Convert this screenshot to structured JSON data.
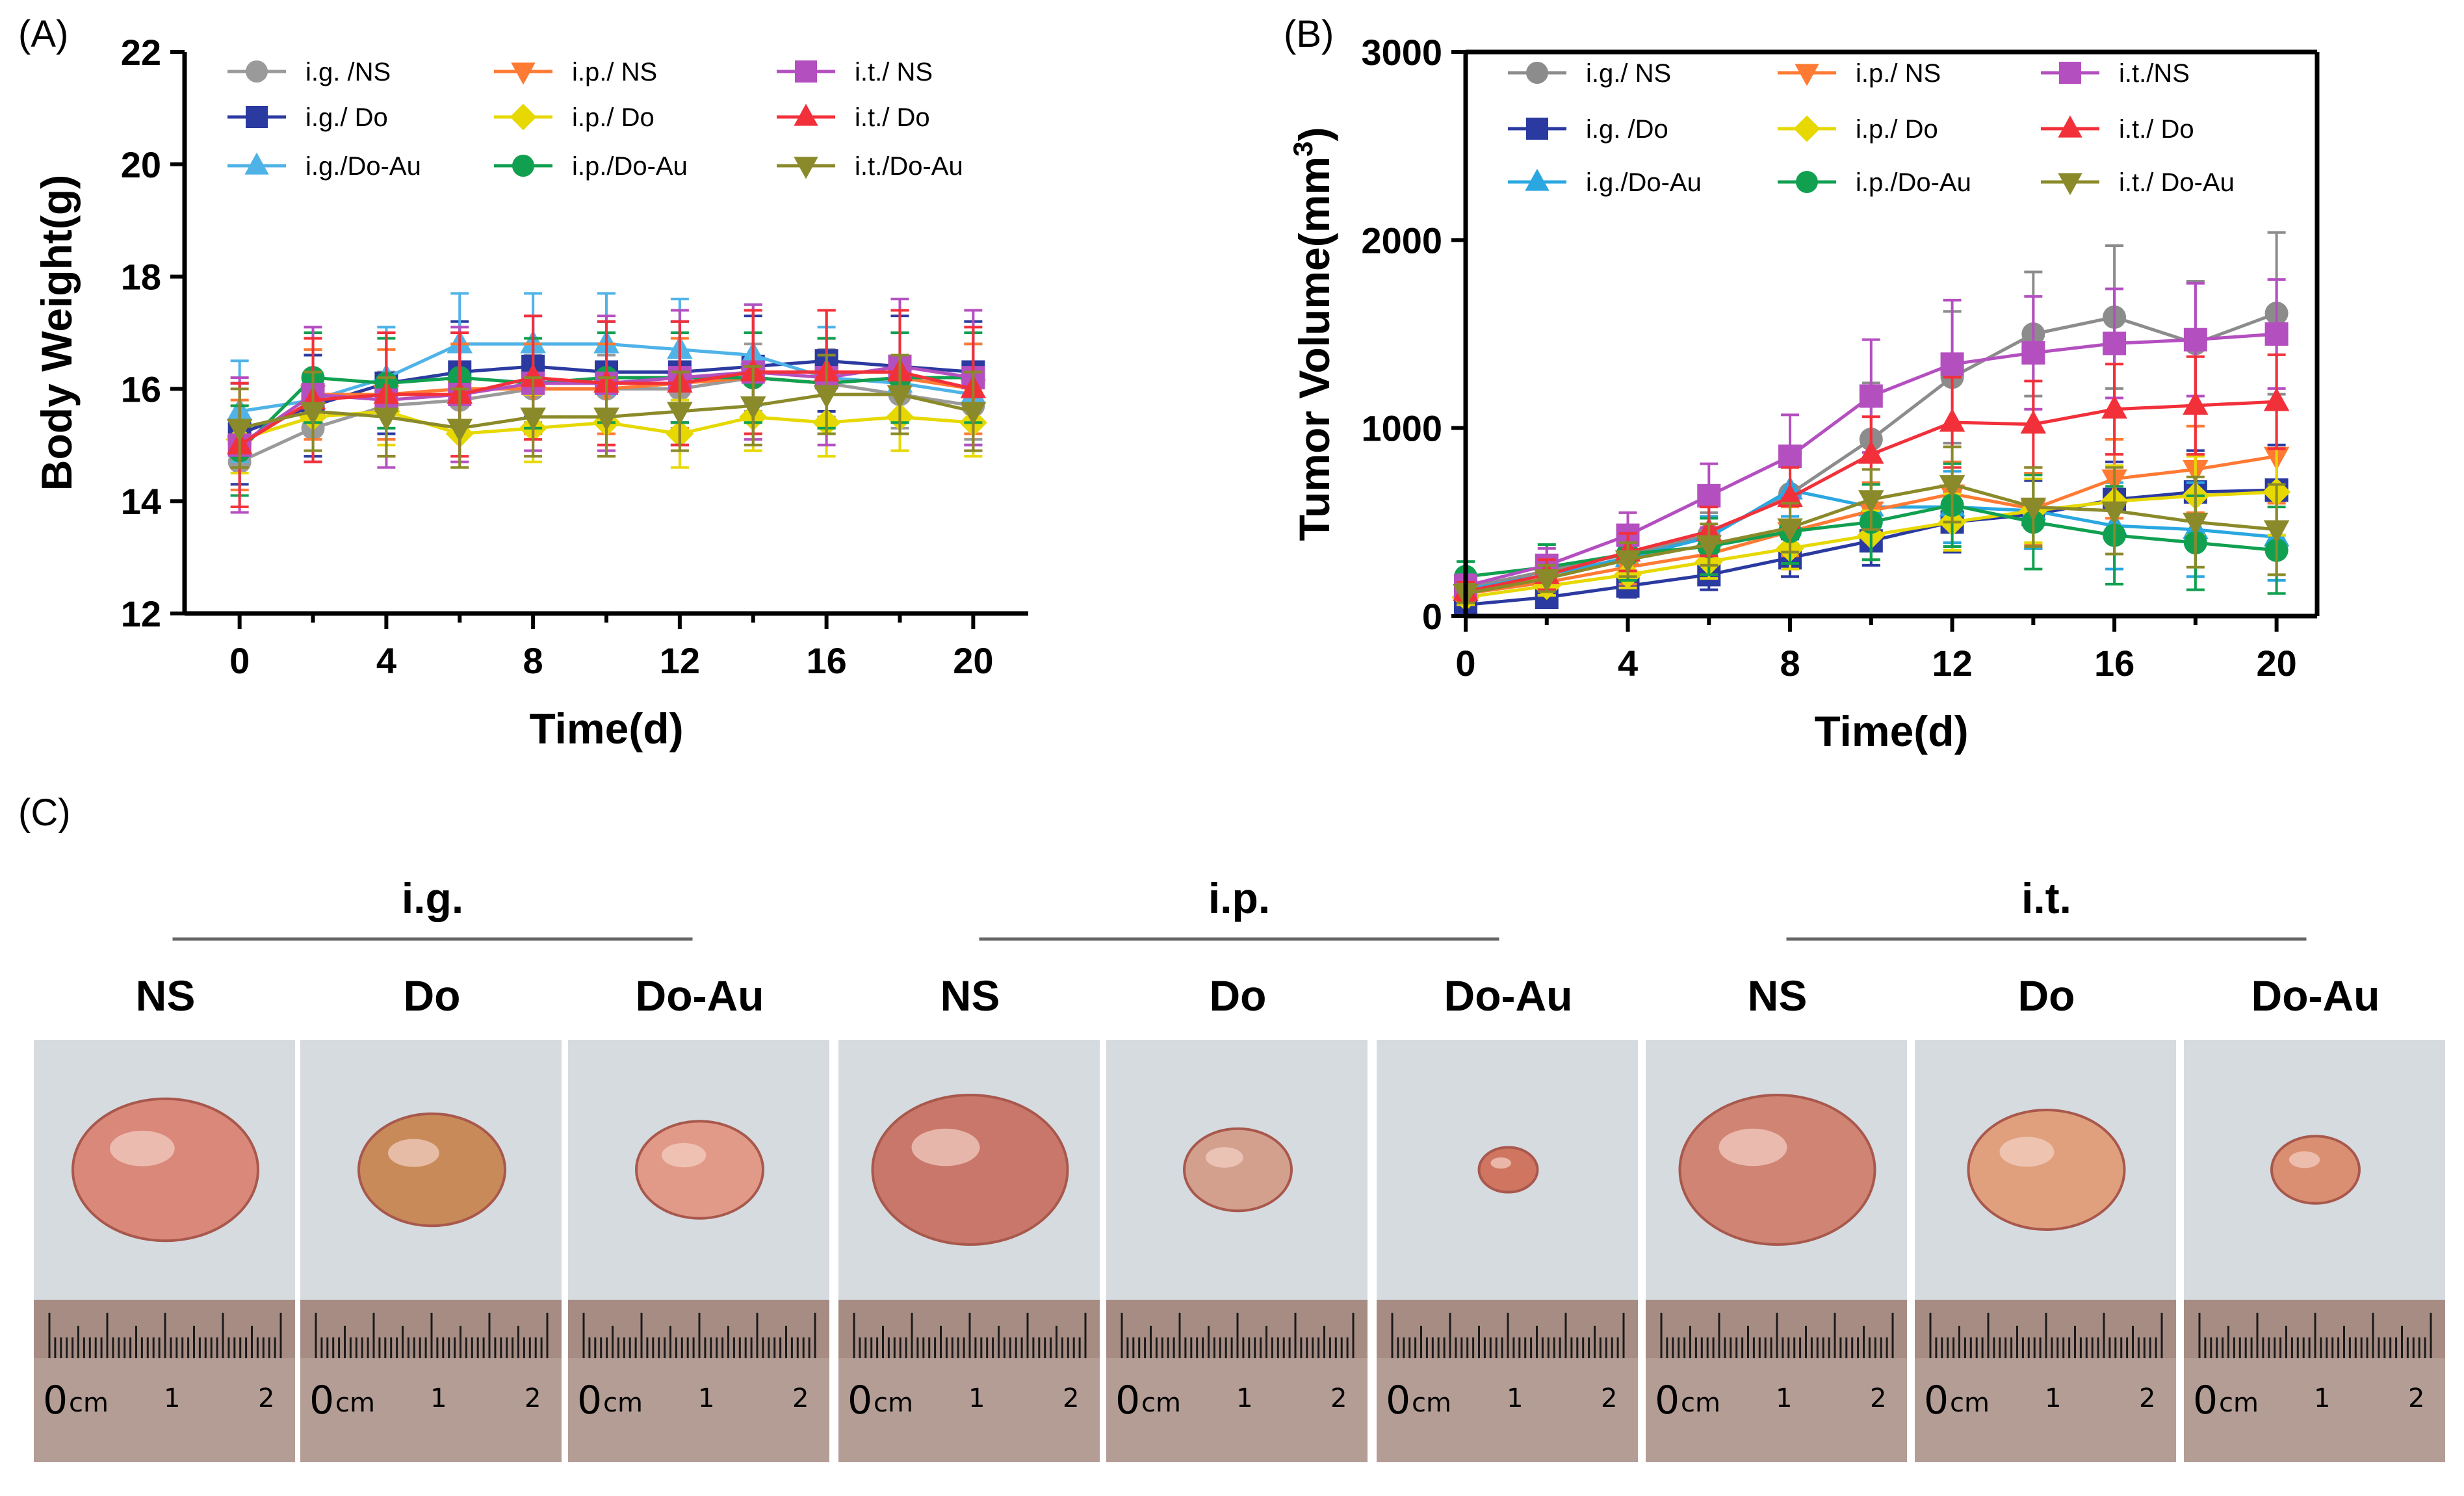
{
  "figure": {
    "panel_labels": [
      "(A)",
      "(B)",
      "(C)"
    ]
  },
  "chart_data": [
    {
      "type": "line",
      "panel": "(A)",
      "title": "",
      "xlabel": "Time(d)",
      "ylabel": "Body Weight(g)",
      "xlim": [
        -1.5,
        21.5
      ],
      "ylim": [
        12,
        22
      ],
      "xticks": [
        0,
        4,
        8,
        12,
        16,
        20
      ],
      "yticks": [
        12,
        14,
        16,
        18,
        20,
        22
      ],
      "x": [
        0,
        2,
        4,
        6,
        8,
        10,
        12,
        14,
        16,
        18,
        20
      ],
      "legend_position": "top",
      "series": [
        {
          "name": "i.g. /NS",
          "color": "#9a9a9a",
          "marker": "circle",
          "values": [
            14.7,
            15.3,
            15.7,
            15.8,
            16.0,
            16.0,
            16.0,
            16.2,
            16.1,
            15.9,
            15.7
          ],
          "err": 0.6
        },
        {
          "name": "i.g./ Do",
          "color": "#2b3aa0",
          "marker": "square",
          "values": [
            15.2,
            15.7,
            16.1,
            16.3,
            16.4,
            16.3,
            16.3,
            16.4,
            16.5,
            16.4,
            16.3
          ],
          "err": 0.9
        },
        {
          "name": "i.g./Do-Au",
          "color": "#4fb3e8",
          "marker": "triangle-up",
          "values": [
            15.6,
            15.8,
            16.2,
            16.8,
            16.8,
            16.8,
            16.7,
            16.6,
            16.2,
            16.1,
            15.9
          ],
          "err": 0.9
        },
        {
          "name": "i.p./ NS",
          "color": "#ff7a33",
          "marker": "triangle-down",
          "values": [
            15.0,
            15.9,
            15.9,
            16.0,
            16.0,
            16.0,
            16.1,
            16.2,
            16.1,
            16.2,
            16.0
          ],
          "err": 0.8
        },
        {
          "name": "i.p./ Do",
          "color": "#e6d800",
          "marker": "diamond",
          "values": [
            15.1,
            15.5,
            15.6,
            15.2,
            15.3,
            15.4,
            15.2,
            15.5,
            15.4,
            15.5,
            15.4
          ],
          "err": 0.6
        },
        {
          "name": "i.p./Do-Au",
          "color": "#10a050",
          "marker": "circle",
          "values": [
            14.9,
            16.2,
            16.1,
            16.2,
            16.1,
            16.2,
            16.2,
            16.2,
            16.1,
            16.2,
            16.2
          ],
          "err": 0.8
        },
        {
          "name": "i.t./ NS",
          "color": "#b44fc0",
          "marker": "square",
          "values": [
            15.0,
            15.9,
            15.8,
            15.9,
            16.1,
            16.1,
            16.2,
            16.3,
            16.2,
            16.4,
            16.2
          ],
          "err": 1.2
        },
        {
          "name": "i.t./ Do",
          "color": "#f2303a",
          "marker": "triangle-up",
          "values": [
            15.0,
            15.8,
            15.9,
            15.9,
            16.2,
            16.1,
            16.1,
            16.3,
            16.3,
            16.3,
            16.0
          ],
          "err": 1.1
        },
        {
          "name": "i.t./Do-Au",
          "color": "#8a8a2a",
          "marker": "triangle-down",
          "values": [
            15.3,
            15.6,
            15.5,
            15.3,
            15.5,
            15.5,
            15.6,
            15.7,
            15.9,
            15.9,
            15.6
          ],
          "err": 0.7
        }
      ]
    },
    {
      "type": "line",
      "panel": "(B)",
      "title": "",
      "xlabel": "Time(d)",
      "ylabel": "Tumor Volume(mm",
      "ylabel_superscript": "3",
      "ylabel_suffix": ")",
      "xlim": [
        0,
        21
      ],
      "ylim": [
        0,
        3000
      ],
      "xticks": [
        0,
        4,
        8,
        12,
        16,
        20
      ],
      "yticks": [
        0,
        1000,
        2000,
        3000
      ],
      "x": [
        0,
        2,
        4,
        6,
        8,
        10,
        12,
        14,
        16,
        18,
        20
      ],
      "legend_position": "top",
      "series": [
        {
          "name": "i.g./ NS",
          "color": "#8c8c8c",
          "marker": "circle",
          "values": [
            150,
            240,
            330,
            430,
            650,
            940,
            1270,
            1500,
            1590,
            1450,
            1610
          ],
          "err": [
            60,
            80,
            100,
            120,
            180,
            300,
            350,
            330,
            380,
            330,
            430
          ]
        },
        {
          "name": "i.g. /Do",
          "color": "#2b3aa0",
          "marker": "square",
          "values": [
            60,
            100,
            160,
            220,
            310,
            400,
            500,
            540,
            620,
            660,
            670
          ],
          "err": [
            40,
            50,
            60,
            80,
            100,
            130,
            160,
            180,
            200,
            220,
            240
          ]
        },
        {
          "name": "i.g./Do-Au",
          "color": "#2aa7e0",
          "marker": "triangle-up",
          "values": [
            140,
            220,
            310,
            420,
            670,
            580,
            580,
            560,
            480,
            460,
            420
          ],
          "err": [
            50,
            70,
            90,
            110,
            140,
            130,
            190,
            200,
            230,
            250,
            230
          ]
        },
        {
          "name": "i.p./ NS",
          "color": "#ff7a33",
          "marker": "triangle-down",
          "values": [
            120,
            180,
            260,
            330,
            450,
            560,
            650,
            570,
            730,
            780,
            850
          ],
          "err": [
            50,
            70,
            90,
            110,
            130,
            150,
            170,
            190,
            210,
            230,
            250
          ]
        },
        {
          "name": "i.p./ Do",
          "color": "#e6d800",
          "marker": "diamond",
          "values": [
            100,
            160,
            220,
            290,
            360,
            430,
            500,
            560,
            610,
            640,
            660
          ],
          "err": [
            40,
            50,
            70,
            90,
            110,
            130,
            150,
            170,
            190,
            210,
            230
          ]
        },
        {
          "name": "i.p./Do-Au",
          "color": "#10a050",
          "marker": "circle",
          "values": [
            210,
            260,
            330,
            370,
            450,
            500,
            590,
            500,
            430,
            390,
            350
          ],
          "err": [
            80,
            120,
            140,
            150,
            170,
            200,
            220,
            250,
            260,
            250,
            230
          ]
        },
        {
          "name": "i.t./NS",
          "color": "#b44fc0",
          "marker": "square",
          "values": [
            160,
            270,
            430,
            640,
            850,
            1170,
            1340,
            1400,
            1450,
            1470,
            1500
          ],
          "err": [
            60,
            90,
            120,
            170,
            220,
            300,
            340,
            300,
            290,
            300,
            290
          ]
        },
        {
          "name": "i.t./ Do",
          "color": "#f2303a",
          "marker": "triangle-up",
          "values": [
            130,
            220,
            340,
            450,
            630,
            860,
            1030,
            1020,
            1100,
            1120,
            1140
          ],
          "err": [
            50,
            80,
            100,
            130,
            160,
            200,
            240,
            230,
            240,
            260,
            250
          ]
        },
        {
          "name": "i.t./ Do-Au",
          "color": "#8a8a2a",
          "marker": "triangle-down",
          "values": [
            120,
            200,
            300,
            380,
            470,
            620,
            700,
            580,
            560,
            500,
            460
          ],
          "err": [
            50,
            70,
            90,
            110,
            130,
            160,
            200,
            210,
            230,
            240,
            240
          ]
        }
      ]
    }
  ],
  "tumor_photos": {
    "groups": [
      {
        "label": "i.g.",
        "samples": [
          {
            "label": "NS",
            "tumor_size": 0.95,
            "tumor_color": "#d9887a"
          },
          {
            "label": "Do",
            "tumor_size": 0.75,
            "tumor_color": "#c98a5a"
          },
          {
            "label": "Do-Au",
            "tumor_size": 0.65,
            "tumor_color": "#e29a88"
          }
        ]
      },
      {
        "label": "i.p.",
        "samples": [
          {
            "label": "NS",
            "tumor_size": 1.0,
            "tumor_color": "#c9776a"
          },
          {
            "label": "Do",
            "tumor_size": 0.55,
            "tumor_color": "#d4a08e"
          },
          {
            "label": "Do-Au",
            "tumor_size": 0.3,
            "tumor_color": "#cf7560"
          }
        ]
      },
      {
        "label": "i.t.",
        "samples": [
          {
            "label": "NS",
            "tumor_size": 1.0,
            "tumor_color": "#cf8474"
          },
          {
            "label": "Do",
            "tumor_size": 0.8,
            "tumor_color": "#e0a07e"
          },
          {
            "label": "Do-Au",
            "tumor_size": 0.45,
            "tumor_color": "#da8e72"
          }
        ]
      }
    ],
    "ruler": {
      "zero": "0",
      "unit": "cm",
      "one": "1",
      "two": "2"
    }
  }
}
